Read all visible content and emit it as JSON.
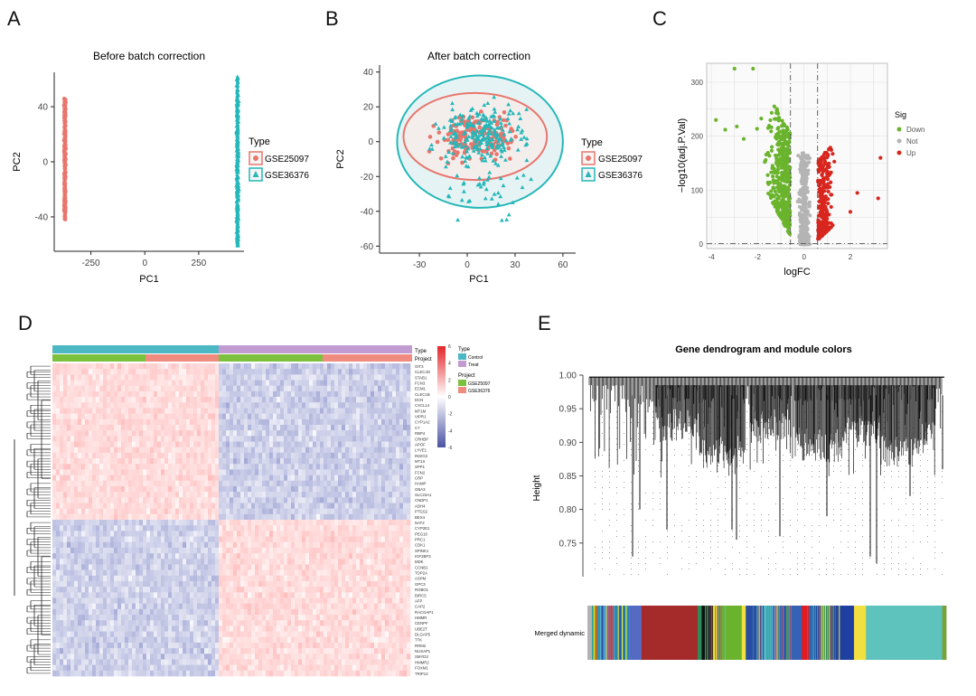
{
  "panel_letters": {
    "a": "A",
    "b": "B",
    "c": "C",
    "d": "D",
    "e": "E"
  },
  "colors": {
    "red": "#e8766d",
    "teal": "#25b7b9",
    "green": "#6ab42d",
    "grey": "#b4b4b4",
    "up": "#d8261e",
    "hm_low": "#4a52a4",
    "hm_high": "#e3262a",
    "purple": "#c39bd3",
    "salmon": "#f08b7f",
    "lime": "#7bc13d"
  },
  "chart_data": [
    {
      "id": "A",
      "type": "scatter",
      "title": "Before batch correction",
      "xlabel": "PC1",
      "ylabel": "PC2",
      "xlim": [
        -420,
        460
      ],
      "ylim": [
        -65,
        65
      ],
      "xticks": [
        "-250",
        "0",
        "250"
      ],
      "xtick_values": [
        -250,
        0,
        250
      ],
      "yticks": [
        "40",
        "0",
        "-40"
      ],
      "ytick_values": [
        40,
        0,
        -40
      ],
      "legend_title": "Type",
      "series": [
        {
          "name": "GSE25097",
          "marker": "circle",
          "x_center": -370,
          "y_range": [
            -42,
            46
          ]
        },
        {
          "name": "GSE36376",
          "marker": "triangle",
          "x_center": 430,
          "y_range": [
            -62,
            62
          ]
        }
      ]
    },
    {
      "id": "B",
      "type": "scatter",
      "title": "After batch correction",
      "xlabel": "PC1",
      "ylabel": "PC2",
      "xlim": [
        -55,
        68
      ],
      "ylim": [
        -64,
        44
      ],
      "xticks": [
        "-30",
        "0",
        "30",
        "60"
      ],
      "xtick_values": [
        -30,
        0,
        30,
        60
      ],
      "yticks": [
        "40",
        "20",
        "0",
        "-20",
        "-40",
        "-60"
      ],
      "ytick_values": [
        40,
        20,
        0,
        -20,
        -40,
        -60
      ],
      "legend_title": "Type",
      "series": [
        {
          "name": "GSE25097",
          "marker": "circle",
          "ellipse": {
            "cx": 5,
            "cy": 3,
            "rx": 45,
            "ry": 25
          }
        },
        {
          "name": "GSE36376",
          "marker": "triangle",
          "ellipse": {
            "cx": 8,
            "cy": 0,
            "rx": 52,
            "ry": 38
          }
        }
      ]
    },
    {
      "id": "C",
      "type": "scatter",
      "title": "",
      "xlabel": "logFC",
      "ylabel": "−log10(adj.P.Val)",
      "xlim": [
        -4.2,
        3.6
      ],
      "ylim": [
        -8,
        335
      ],
      "xticks": [
        "-4",
        "-2",
        "0",
        "2"
      ],
      "xtick_values": [
        -4,
        -2,
        0,
        2
      ],
      "yticks": [
        "300",
        "200",
        "100",
        "0"
      ],
      "ytick_values": [
        300,
        200,
        100,
        0
      ],
      "vlines": [
        -0.585,
        0.585
      ],
      "hline": 1.3,
      "legend_title": "Sig",
      "series": [
        {
          "name": "Down"
        },
        {
          "name": "Not"
        },
        {
          "name": "Up"
        }
      ]
    },
    {
      "id": "D",
      "type": "heatmap",
      "title": "",
      "annotation_labels": [
        "Type",
        "Project"
      ],
      "legend_scale": [
        "6",
        "4",
        "2",
        "0",
        "-2",
        "-4",
        "-6"
      ],
      "legend_type_title": "Type",
      "legend_type": [
        "Control",
        "Treat"
      ],
      "legend_project_title": "Project",
      "legend_project": [
        "GSE25097",
        "GSE36376"
      ],
      "row_labels": [
        "OIT3",
        "CLEC4G",
        "STAB1",
        "FCN3",
        "ECM1",
        "CLEC1B",
        "DCN",
        "CXCL14",
        "MT1M",
        "VIPR1",
        "CYP1A2",
        "C7",
        "RBP4",
        "CRHBP",
        "APOF",
        "LYVE1",
        "INSIG2",
        "MT1X",
        "SPP1",
        "FCN2",
        "CRP",
        "HAMP",
        "GBA3",
        "SLC22A1",
        "CNDP1",
        "ADH4",
        "PTGS2",
        "BEX4",
        "NAT2",
        "CYP2E1",
        "PEG10",
        "PRC1",
        "CDK1",
        "SPINK1",
        "IGF2BP3",
        "MDK",
        "CCNB1",
        "TOP2A",
        "ASPM",
        "GPC3",
        "ROBO1",
        "BIRC5",
        "AFP",
        "CAP2",
        "RACGAP1",
        "HMMR",
        "CENPF",
        "UBE2T",
        "DLGAP5",
        "TTK",
        "RRM2",
        "NUSAP1",
        "SMYD3",
        "HMMR2",
        "FOXM1",
        "TRIP13"
      ]
    },
    {
      "id": "E",
      "type": "dendrogram",
      "title": "Gene dendrogram and module colors",
      "ylabel": "Height",
      "ylim": [
        0.7,
        1.0
      ],
      "yticks": [
        "1.00",
        "0.95",
        "0.90",
        "0.85",
        "0.80",
        "0.75"
      ],
      "ytick_values": [
        1.0,
        0.95,
        0.9,
        0.85,
        0.8,
        0.75
      ],
      "color_bar_label": "Merged dynamic",
      "modules": [
        {
          "color": "#b3b3b3",
          "share": 1.5
        },
        {
          "color": "#8b8b00",
          "share": 1
        },
        {
          "color": "#3d7bd0",
          "share": 3
        },
        {
          "color": "#2f6db3",
          "share": 3
        },
        {
          "color": "#22a39b",
          "share": 2
        },
        {
          "color": "#556bc3",
          "share": 3
        },
        {
          "color": "#a52a2a",
          "share": 14
        },
        {
          "color": "#2e8b57",
          "share": 1
        },
        {
          "color": "#111111",
          "share": 3
        },
        {
          "color": "#f0e040",
          "share": 1
        },
        {
          "color": "#6ab42d",
          "share": 6
        },
        {
          "color": "#f0e040",
          "share": 1
        },
        {
          "color": "#2a4fa0",
          "share": 4
        },
        {
          "color": "#5bb5c9",
          "share": 3
        },
        {
          "color": "#7b3fa0",
          "share": 1
        },
        {
          "color": "#3562b5",
          "share": 6
        },
        {
          "color": "#e41a1c",
          "share": 2
        },
        {
          "color": "#2448a8",
          "share": 3
        },
        {
          "color": "#2e8b57",
          "share": 2
        },
        {
          "color": "#1e40a0",
          "share": 6
        },
        {
          "color": "#f0e040",
          "share": 3
        },
        {
          "color": "#5dc3bc",
          "share": 19
        },
        {
          "color": "#7aa23a",
          "share": 1
        }
      ]
    }
  ]
}
